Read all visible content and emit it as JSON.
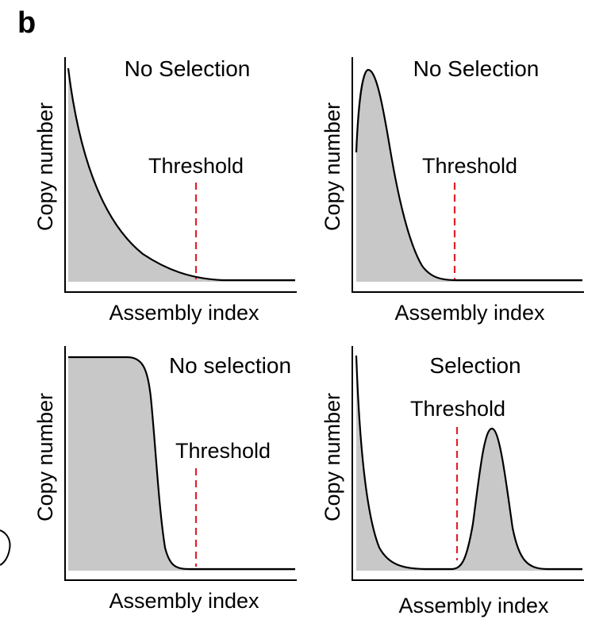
{
  "figure": {
    "panel_label": "b",
    "fill_color": "#c8c8c8",
    "curve_color": "#000000",
    "threshold_color": "#e0212b"
  },
  "panels": [
    {
      "title": "No Selection",
      "threshold_label": "Threshold",
      "ylabel": "Copy number",
      "xlabel": "Assembly index",
      "curve_shape": "exponential-decay"
    },
    {
      "title": "No Selection",
      "threshold_label": "Threshold",
      "ylabel": "Copy number",
      "xlabel": "Assembly index",
      "curve_shape": "early-peak-decay"
    },
    {
      "title": "No selection",
      "threshold_label": "Threshold",
      "ylabel": "Copy number",
      "xlabel": "Assembly index",
      "curve_shape": "plateau-then-drop"
    },
    {
      "title": "Selection",
      "threshold_label": "Threshold",
      "ylabel": "Copy number",
      "xlabel": "Assembly index",
      "curve_shape": "decay-with-second-peak"
    }
  ]
}
